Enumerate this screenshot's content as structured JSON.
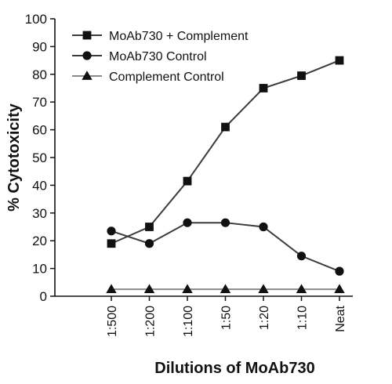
{
  "chart_data": {
    "type": "line",
    "title": "",
    "xlabel": "Dilutions of MoAb730",
    "ylabel": "% Cytotoxicity",
    "categories": [
      "1:500",
      "1:200",
      "1:100",
      "1:50",
      "1:20",
      "1:10",
      "Neat"
    ],
    "ylim": [
      0,
      100
    ],
    "yticks": [
      0,
      10,
      20,
      30,
      40,
      50,
      60,
      70,
      80,
      90,
      100
    ],
    "grid": false,
    "legend_position": "top-left",
    "series": [
      {
        "name": "MoAb730 + Complement",
        "marker": "square",
        "color": "#3c3c3c",
        "values": [
          19,
          25,
          41.5,
          61,
          75,
          79.5,
          85
        ]
      },
      {
        "name": "MoAb730 Control",
        "marker": "circle",
        "color": "#3c3c3c",
        "values": [
          23.5,
          19,
          26.5,
          26.5,
          25,
          14.5,
          9
        ]
      },
      {
        "name": "Complement Control",
        "marker": "triangle",
        "color": "#8a8a8a",
        "values": [
          2.5,
          2.5,
          2.5,
          2.5,
          2.5,
          2.5,
          2.5
        ]
      }
    ]
  }
}
